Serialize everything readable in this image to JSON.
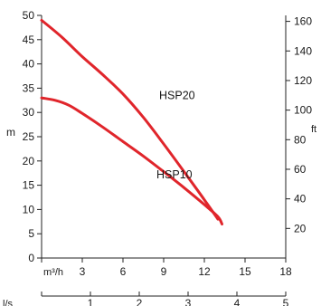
{
  "chart_data": {
    "type": "line",
    "title": "",
    "left_axis": {
      "label": "m",
      "range": [
        0,
        50
      ],
      "ticks": [
        0,
        5,
        10,
        15,
        20,
        25,
        30,
        35,
        40,
        45,
        50
      ]
    },
    "right_axis": {
      "label": "ft",
      "ticks": [
        20,
        40,
        60,
        80,
        100,
        120,
        140,
        160
      ]
    },
    "x_axis": {
      "unit": "m³/h",
      "range": [
        0,
        18
      ],
      "ticks": [
        3,
        6,
        9,
        12,
        15,
        18
      ]
    },
    "x_axis_secondary": {
      "unit": "l/s",
      "range": [
        0,
        5
      ],
      "ticks": [
        1,
        2,
        3,
        4,
        5
      ]
    },
    "grid": false,
    "series": [
      {
        "name": "HSP20",
        "color": "#e0252b",
        "points": [
          [
            0,
            49
          ],
          [
            1.5,
            45.5
          ],
          [
            3,
            41.5
          ],
          [
            4.5,
            37.8
          ],
          [
            6,
            33.8
          ],
          [
            7.5,
            29
          ],
          [
            9,
            23.5
          ],
          [
            10.5,
            17.8
          ],
          [
            12,
            12
          ],
          [
            13,
            8
          ]
        ]
      },
      {
        "name": "HSP10",
        "color": "#e0252b",
        "points": [
          [
            0,
            33
          ],
          [
            1,
            32.5
          ],
          [
            2,
            31.5
          ],
          [
            3,
            29.8
          ],
          [
            4.5,
            27
          ],
          [
            6,
            24
          ],
          [
            7.5,
            21
          ],
          [
            9,
            17.8
          ],
          [
            10.5,
            14.5
          ],
          [
            12,
            11
          ],
          [
            13,
            8.5
          ],
          [
            13.3,
            7
          ]
        ]
      }
    ]
  }
}
